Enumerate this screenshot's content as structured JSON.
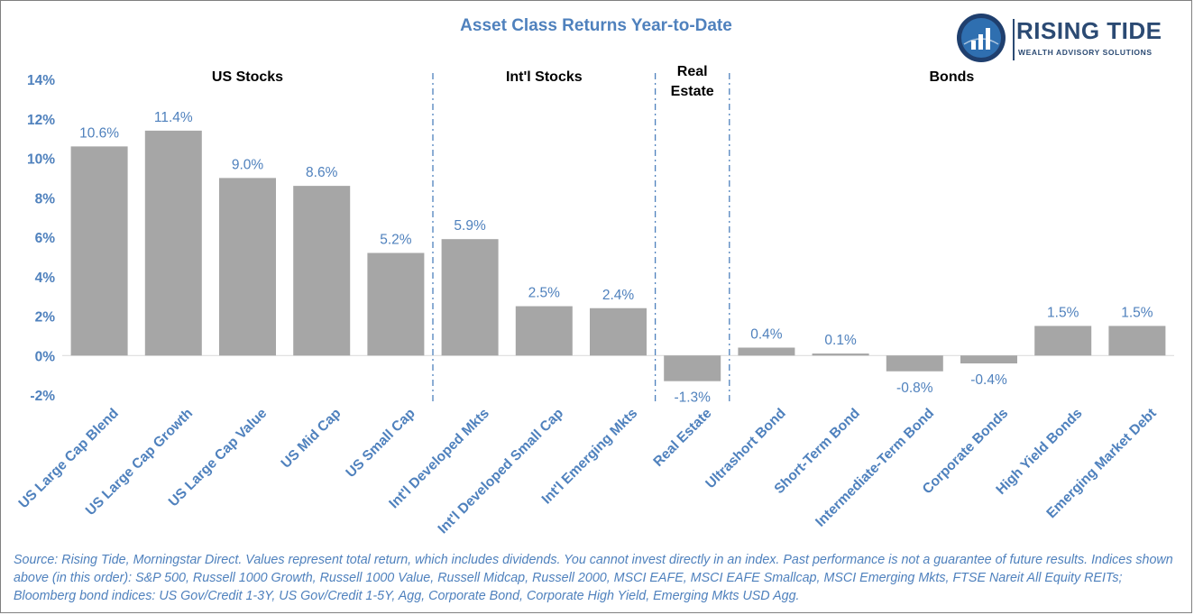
{
  "header": {
    "title": "Asset Class Returns Year-to-Date"
  },
  "logo": {
    "name": "RISING TIDE",
    "tagline": "WEALTH ADVISORY SOLUTIONS",
    "icon": "bar-chart-globe-icon"
  },
  "colors": {
    "bar": "#a6a6a6",
    "text_blue": "#4f81bd",
    "divider": "#4f81bd",
    "logo_navy": "#2b4a73"
  },
  "chart_data": {
    "type": "bar",
    "title": "Asset Class Returns Year-to-Date",
    "xlabel": "",
    "ylabel": "",
    "ylim": [
      -2,
      14
    ],
    "y_ticks": [
      "14%",
      "12%",
      "10%",
      "8%",
      "6%",
      "4%",
      "2%",
      "0%",
      "-2%"
    ],
    "y_tick_values": [
      14,
      12,
      10,
      8,
      6,
      4,
      2,
      0,
      -2
    ],
    "grid": false,
    "categories": [
      "US Large Cap Blend",
      "US Large Cap Growth",
      "US Large Cap Value",
      "US Mid Cap",
      "US Small Cap",
      "Int'l Developed Mkts",
      "Int'l Developed Small Cap",
      "Int'l Emerging Mkts",
      "Real Estate",
      "Ultrashort Bond",
      "Short-Term Bond",
      "Intermediate-Term Bond",
      "Corporate Bonds",
      "High Yield Bonds",
      "Emerging Market Debt"
    ],
    "values": [
      10.6,
      11.4,
      9.0,
      8.6,
      5.2,
      5.9,
      2.5,
      2.4,
      -1.3,
      0.4,
      0.1,
      -0.8,
      -0.4,
      1.5,
      1.5
    ],
    "data_labels": [
      "10.6%",
      "11.4%",
      "9.0%",
      "8.6%",
      "5.2%",
      "5.9%",
      "2.5%",
      "2.4%",
      "-1.3%",
      "0.4%",
      "0.1%",
      "-0.8%",
      "-0.4%",
      "1.5%",
      "1.5%"
    ],
    "groups": [
      {
        "label": "US Stocks",
        "start": 0,
        "end": 4
      },
      {
        "label": "Int'l Stocks",
        "start": 5,
        "end": 7
      },
      {
        "label": "Real\nEstate",
        "start": 8,
        "end": 8
      },
      {
        "label": "Bonds",
        "start": 9,
        "end": 14
      }
    ]
  },
  "footer": {
    "source": "Source: Rising Tide, Morningstar Direct. Values represent total return, which includes dividends. You cannot invest directly in an index. Past performance is not a guarantee of future results. Indices shown above (in this order): S&P 500, Russell 1000 Growth, Russell 1000 Value, Russell Midcap, Russell 2000, MSCI EAFE, MSCI EAFE Smallcap, MSCI Emerging Mkts, FTSE Nareit All Equity REITs; Bloomberg bond indices: US Gov/Credit 1-3Y, US Gov/Credit 1-5Y, Agg, Corporate Bond, Corporate High Yield, Emerging Mkts USD Agg."
  }
}
